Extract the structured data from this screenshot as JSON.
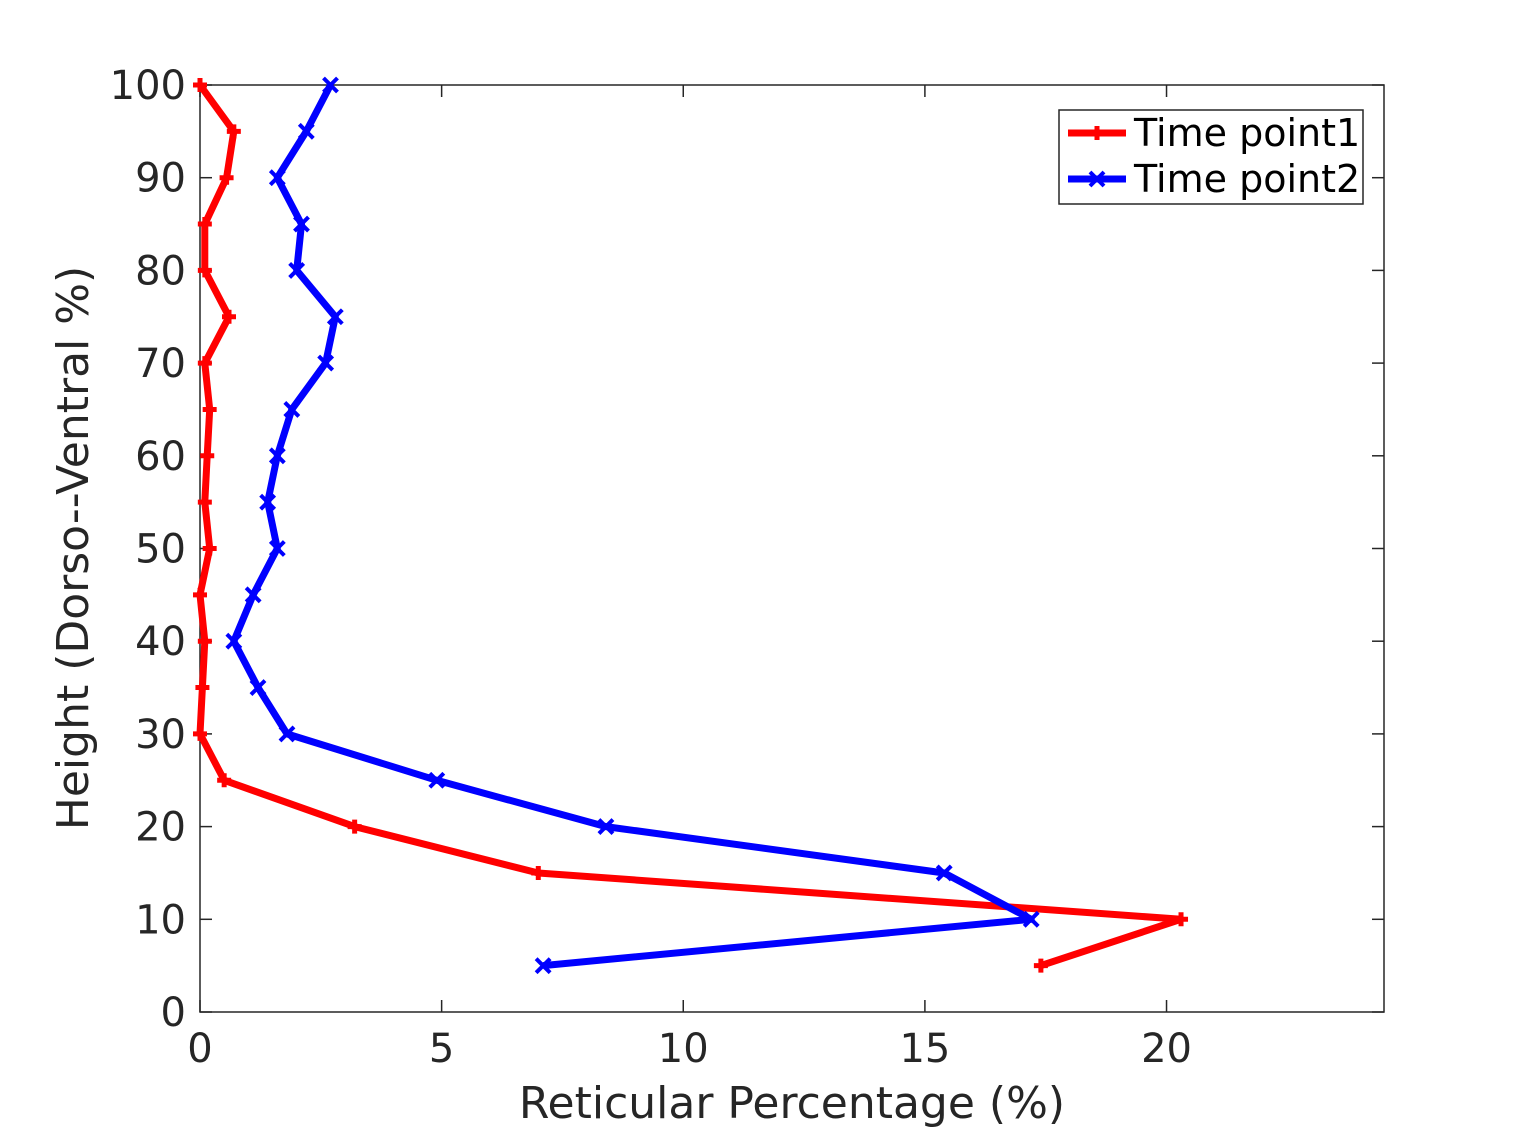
{
  "chart_data": {
    "type": "line",
    "title": "",
    "xlabel": "Reticular Percentage (%)",
    "ylabel": "Height (Dorso--Ventral %)",
    "xlim": [
      0,
      24.5
    ],
    "ylim": [
      0,
      100
    ],
    "xticks": [
      0,
      5,
      10,
      15,
      20
    ],
    "yticks": [
      0,
      10,
      20,
      30,
      40,
      50,
      60,
      70,
      80,
      90,
      100
    ],
    "grid": false,
    "legend_position": "top-right",
    "series": [
      {
        "name": "Time point1",
        "color": "#ff0000",
        "marker": "plus",
        "x": [
          17.4,
          20.3,
          7.0,
          3.2,
          0.5,
          0.0,
          0.05,
          0.1,
          0.0,
          0.2,
          0.1,
          0.15,
          0.2,
          0.1,
          0.6,
          0.1,
          0.1,
          0.55,
          0.7,
          0.0
        ],
        "y": [
          5,
          10,
          15,
          20,
          25,
          30,
          35,
          40,
          45,
          50,
          55,
          60,
          65,
          70,
          75,
          80,
          85,
          90,
          95,
          100
        ]
      },
      {
        "name": "Time point2",
        "color": "#0000ff",
        "marker": "x",
        "x": [
          7.1,
          17.2,
          15.4,
          8.4,
          4.9,
          1.8,
          1.2,
          0.7,
          1.1,
          1.6,
          1.4,
          1.6,
          1.9,
          2.6,
          2.8,
          2.0,
          2.1,
          1.6,
          2.2,
          2.7
        ],
        "y": [
          5,
          10,
          15,
          20,
          25,
          30,
          35,
          40,
          45,
          50,
          55,
          60,
          65,
          70,
          75,
          80,
          85,
          90,
          95,
          100
        ]
      }
    ]
  }
}
